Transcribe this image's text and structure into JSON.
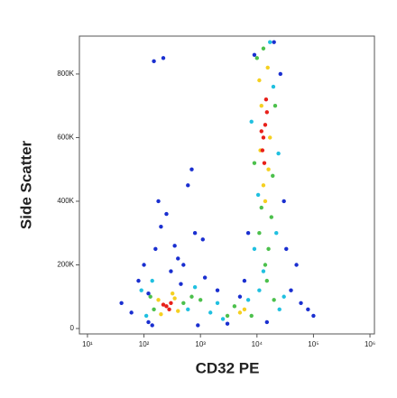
{
  "chart_data": {
    "type": "scatter",
    "x_label": "CD32 PE",
    "y_label": "Side Scatter",
    "xscale": "log",
    "xlim": [
      7.2,
      1200000
    ],
    "ylim": [
      -17000,
      919000
    ],
    "xticks": [
      {
        "value": 10,
        "label": "10¹"
      },
      {
        "value": 100,
        "label": "10²"
      },
      {
        "value": 1000,
        "label": "10³"
      },
      {
        "value": 10000,
        "label": "10⁴"
      },
      {
        "value": 100000,
        "label": "10⁵"
      },
      {
        "value": 1000000,
        "label": "10⁶"
      }
    ],
    "yticks": [
      0,
      {
        "value": 200000,
        "label": "200K"
      },
      {
        "value": 400000,
        "label": "400K"
      },
      {
        "value": 600000,
        "label": "600K"
      },
      {
        "value": 800000,
        "label": "800K"
      }
    ],
    "series": [
      {
        "color": "#1a2fd0",
        "x": [
          40,
          60,
          80,
          100,
          120,
          160,
          200,
          300,
          500,
          800,
          1200,
          2000,
          180,
          250,
          150,
          350,
          600,
          400,
          40000,
          60000,
          80000,
          50000,
          6000,
          7000,
          30000,
          26000,
          9000,
          5000,
          120,
          900,
          3000,
          1100,
          450,
          100000,
          15000,
          20000,
          220,
          140,
          700,
          33000
        ],
        "values": [
          80000,
          50000,
          150000,
          200000,
          110000,
          250000,
          320000,
          180000,
          200000,
          300000,
          160000,
          120000,
          400000,
          360000,
          840000,
          260000,
          450000,
          220000,
          120000,
          80000,
          60000,
          200000,
          150000,
          300000,
          400000,
          800000,
          860000,
          100000,
          20000,
          10000,
          15000,
          280000,
          140000,
          40000,
          20000,
          900000,
          850000,
          10000,
          500000,
          250000
        ]
      },
      {
        "color": "#20c0e0",
        "x": [
          90,
          110,
          140,
          600,
          800,
          1500,
          2000,
          2500,
          7000,
          25000,
          30000,
          9000,
          8000,
          22000,
          17000,
          11000,
          24000,
          13000,
          10500,
          19500
        ],
        "values": [
          120000,
          40000,
          150000,
          60000,
          130000,
          50000,
          80000,
          30000,
          90000,
          60000,
          100000,
          250000,
          650000,
          300000,
          900000,
          120000,
          550000,
          180000,
          420000,
          760000
        ]
      },
      {
        "color": "#4cc04c",
        "x": [
          150,
          130,
          500,
          700,
          1000,
          3000,
          4000,
          8000,
          20000,
          11000,
          18000,
          10000,
          13000,
          16000,
          14000,
          19000,
          12000,
          15000,
          21000,
          9000
        ],
        "values": [
          60000,
          100000,
          80000,
          100000,
          90000,
          40000,
          70000,
          40000,
          90000,
          300000,
          350000,
          850000,
          880000,
          250000,
          200000,
          480000,
          380000,
          150000,
          700000,
          520000
        ]
      },
      {
        "color": "#f5d020",
        "x": [
          180,
          350,
          400,
          200,
          320,
          5000,
          6000,
          11000,
          16000,
          13000,
          15500,
          12000,
          14000,
          17000,
          11500
        ],
        "values": [
          90000,
          95000,
          55000,
          45000,
          110000,
          50000,
          60000,
          780000,
          500000,
          450000,
          820000,
          700000,
          400000,
          600000,
          560000
        ]
      },
      {
        "color": "#e8201a",
        "x": [
          250,
          300,
          280,
          220,
          13000,
          14000,
          12500,
          15000,
          13500,
          14500,
          12000
        ],
        "values": [
          70000,
          80000,
          60000,
          75000,
          600000,
          640000,
          560000,
          680000,
          520000,
          720000,
          620000
        ]
      }
    ]
  }
}
